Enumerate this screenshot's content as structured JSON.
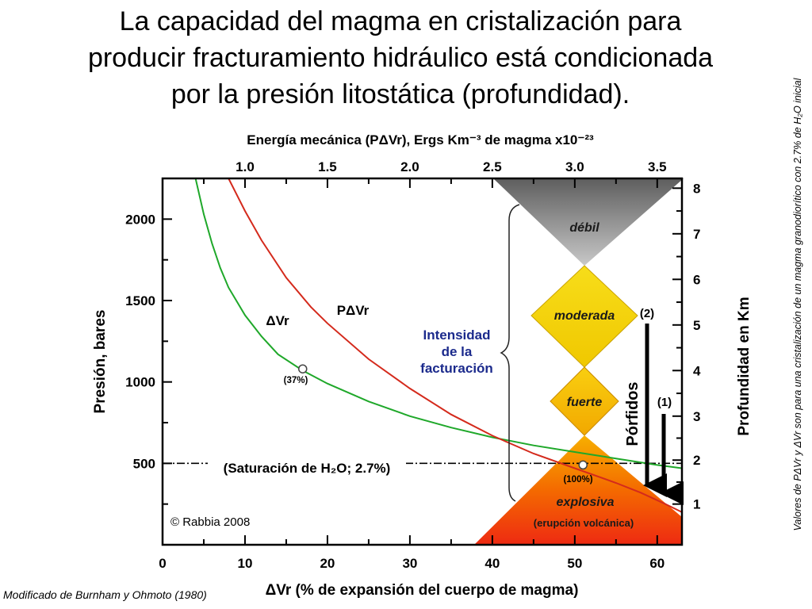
{
  "title_lines": [
    "La capacidad del magma en cristalización para",
    "producir fracturamiento hidráulico  está condicionada",
    "por la presión litostática (profundidad)."
  ],
  "side_note": "Valores de PΔVr y ΔVr son para una cristalización de un magma granodiorítico con 2.7% de H₂O inicial",
  "source_credit": "Modificado de Burnham y Ohmoto (1980)",
  "chart_data": {
    "type": "line",
    "top_axis_title": "Energía mecánica (PΔVr), Ergs Km⁻³ de magma x10⁻²³",
    "xlabel": "ΔVr (% de expansión del cuerpo de magma)",
    "ylabel": "Presión, bares",
    "right_axis_label": "Profundidad en Km",
    "xlim": [
      0,
      63
    ],
    "ylim": [
      0,
      2250
    ],
    "x_ticks": [
      "0",
      "10",
      "20",
      "30",
      "40",
      "50",
      "60"
    ],
    "y_ticks": [
      "500",
      "1000",
      "1500",
      "2000"
    ],
    "top_ticks": [
      "1.0",
      "1.5",
      "2.0",
      "2.5",
      "3.0",
      "3.5"
    ],
    "top_tick_positions_x": [
      10,
      20,
      30,
      40,
      50,
      60
    ],
    "depth_ticks": [
      "1",
      "2",
      "3",
      "4",
      "5",
      "6",
      "7",
      "8"
    ],
    "depth_tick_positions_y": [
      250,
      520,
      790,
      1070,
      1350,
      1630,
      1910,
      2190
    ],
    "grid": false,
    "series": [
      {
        "name": "ΔVr",
        "color": "#1fa82a",
        "x": [
          4,
          5,
          6,
          7,
          8,
          10,
          12,
          14,
          17,
          20,
          25,
          30,
          35,
          40,
          45,
          50,
          55,
          60,
          63
        ],
        "y": [
          2250,
          2030,
          1850,
          1700,
          1580,
          1410,
          1280,
          1170,
          1070,
          990,
          880,
          790,
          720,
          660,
          610,
          570,
          530,
          490,
          470
        ]
      },
      {
        "name": "PΔVr",
        "color": "#d42a1c",
        "x": [
          8,
          10,
          12,
          15,
          18,
          20,
          25,
          30,
          35,
          40,
          45,
          50,
          55,
          58,
          61,
          63
        ],
        "y": [
          2250,
          2050,
          1870,
          1640,
          1460,
          1360,
          1140,
          960,
          800,
          670,
          560,
          470,
          380,
          320,
          250,
          200
        ]
      }
    ],
    "points": [
      {
        "x": 17,
        "y": 1080,
        "label": "(37%)"
      },
      {
        "x": 51,
        "y": 490,
        "label": "(100%)"
      }
    ],
    "saturation_line": {
      "y": 500,
      "label": "(Saturación de H₂O; 2.7%)"
    },
    "curve_labels": {
      "dvr": "ΔVr",
      "pdvr": "PΔVr"
    },
    "intensity_label": [
      "Intensidad",
      "de la",
      "facturación"
    ],
    "zones": [
      {
        "label": "débil",
        "color": "#8c8c8c"
      },
      {
        "label": "moderada",
        "color": "#f2d200"
      },
      {
        "label": "fuerte",
        "color": "#f5b800"
      },
      {
        "label": "explosiva",
        "color": "#f04a00"
      }
    ],
    "eruption_label": "(erupción volcánica)",
    "porfidos_label": "Pórfidos",
    "arrow_labels": [
      "(2)",
      "(1)"
    ],
    "copyright": "© Rabbia 2008"
  }
}
